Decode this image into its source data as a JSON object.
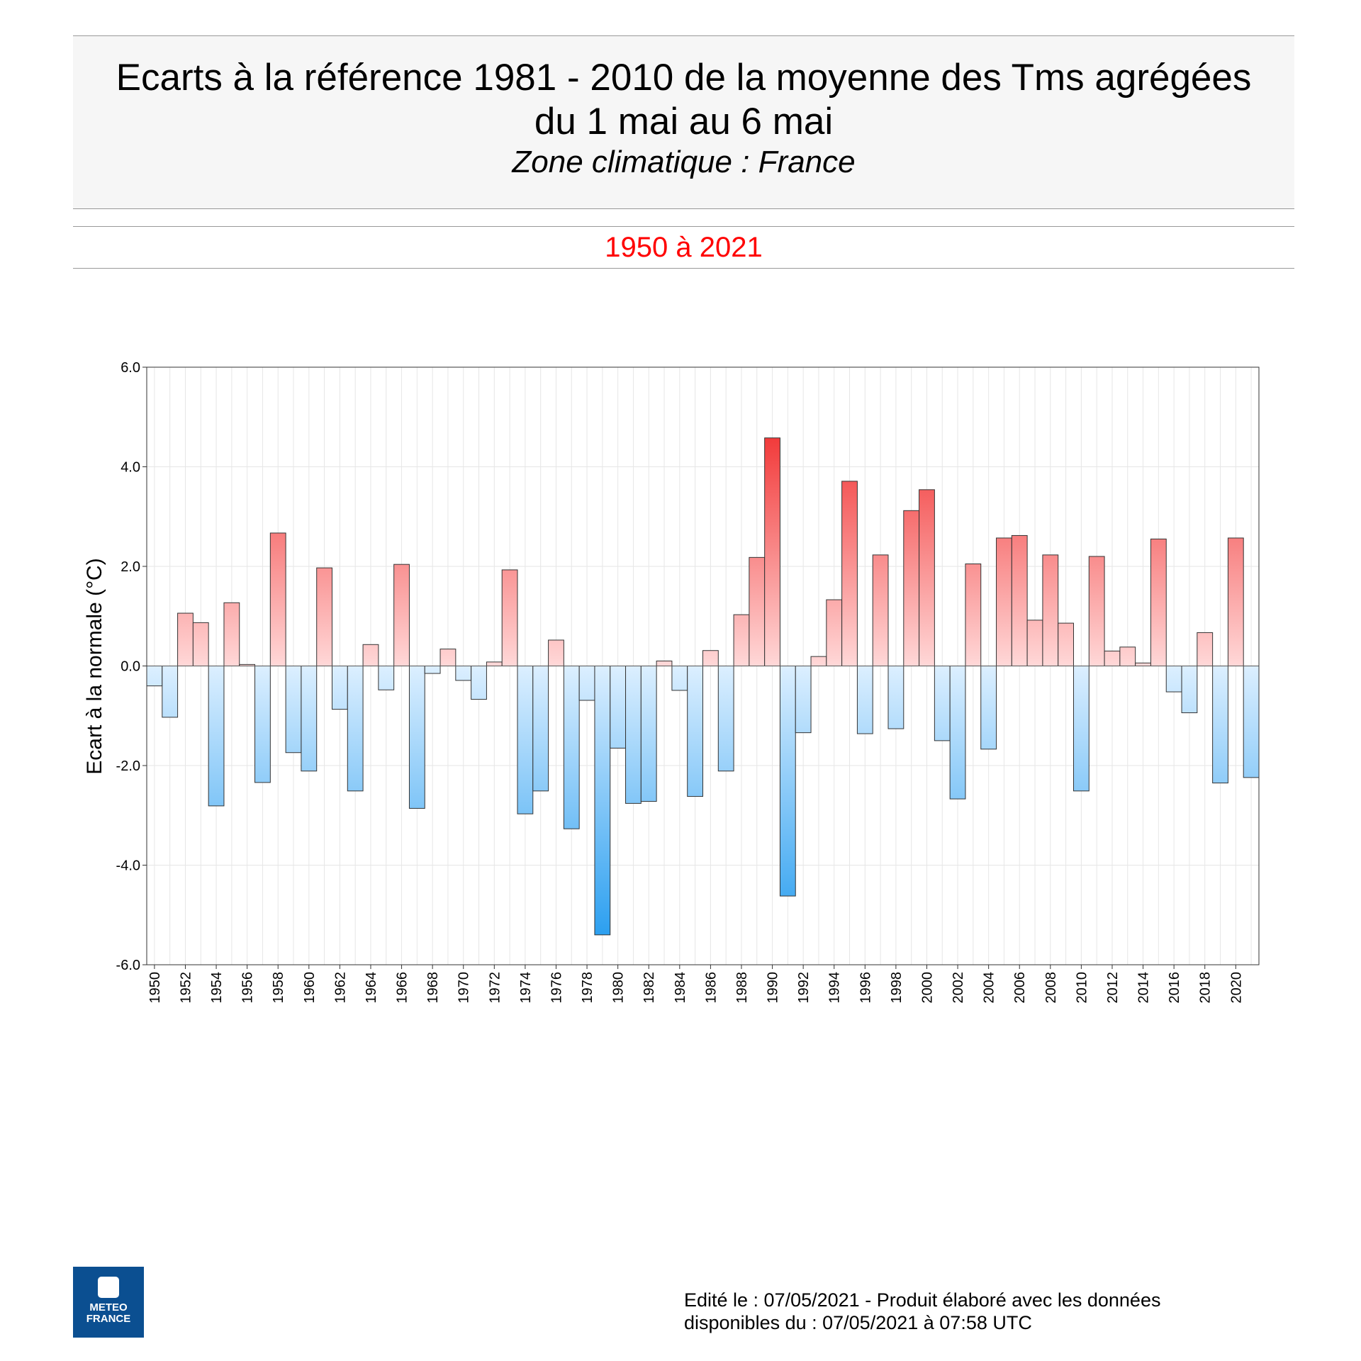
{
  "header": {
    "title_line1": "Ecarts à la référence 1981 - 2010 de la moyenne des Tms agrégées",
    "title_line2": "du 1 mai au 6 mai",
    "subtitle": "Zone climatique : France",
    "period": "1950 à 2021"
  },
  "footer": {
    "line1": "Edité le : 07/05/2021 - Produit élaboré avec les données",
    "line2": "disponibles du : 07/05/2021 à 07:58 UTC"
  },
  "logo": {
    "text1": "METEO",
    "text2": "FRANCE"
  },
  "colors": {
    "positive": "#f23b3b",
    "negative": "#2b9ff0",
    "period": "#ff0000"
  },
  "chart_data": {
    "type": "bar",
    "ylabel": "Ecart à la normale (°C)",
    "ylim": [
      -6,
      6
    ],
    "yticks": [
      "6.0",
      "4.0",
      "2.0",
      "0.0",
      "-2.0",
      "-4.0",
      "-6.0"
    ],
    "grid": true,
    "categories": [
      1950,
      1951,
      1952,
      1953,
      1954,
      1955,
      1956,
      1957,
      1958,
      1959,
      1960,
      1961,
      1962,
      1963,
      1964,
      1965,
      1966,
      1967,
      1968,
      1969,
      1970,
      1971,
      1972,
      1973,
      1974,
      1975,
      1976,
      1977,
      1978,
      1979,
      1980,
      1981,
      1982,
      1983,
      1984,
      1985,
      1986,
      1987,
      1988,
      1989,
      1990,
      1991,
      1992,
      1993,
      1994,
      1995,
      1996,
      1997,
      1998,
      1999,
      2000,
      2001,
      2002,
      2003,
      2004,
      2005,
      2006,
      2007,
      2008,
      2009,
      2010,
      2011,
      2012,
      2013,
      2014,
      2015,
      2016,
      2017,
      2018,
      2019,
      2020,
      2021
    ],
    "values": [
      -0.4,
      -1.03,
      1.06,
      0.87,
      -2.81,
      1.27,
      0.03,
      -2.34,
      2.67,
      -1.74,
      -2.11,
      1.97,
      -0.87,
      -2.51,
      0.43,
      -0.48,
      2.04,
      -2.86,
      -0.15,
      0.34,
      -0.29,
      -0.67,
      0.08,
      1.93,
      -2.97,
      -2.51,
      0.52,
      -3.27,
      -0.69,
      -5.4,
      -1.65,
      -2.76,
      -2.72,
      0.1,
      -0.49,
      -2.62,
      0.31,
      -2.11,
      1.03,
      2.18,
      4.58,
      -4.62,
      -1.34,
      0.19,
      1.33,
      3.71,
      -1.36,
      2.23,
      -1.26,
      3.12,
      3.54,
      -1.5,
      -2.67,
      2.05,
      -1.67,
      2.57,
      2.62,
      0.92,
      2.23,
      0.86,
      -2.51,
      2.2,
      0.3,
      0.38,
      0.06,
      2.55,
      -0.52,
      -0.94,
      0.67,
      -2.35,
      2.57,
      -2.24
    ]
  }
}
